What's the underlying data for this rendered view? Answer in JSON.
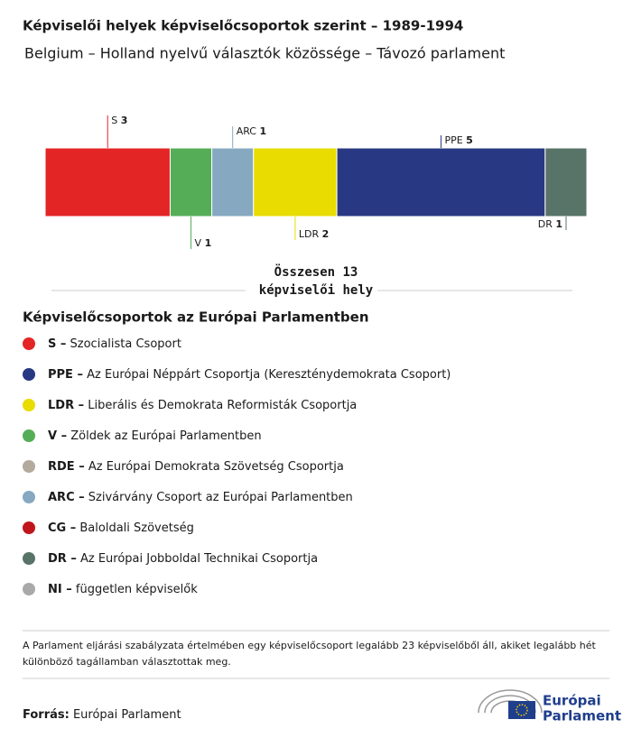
{
  "chart_data": {
    "type": "stacked-bar",
    "title": "Képviselői helyek képviselőcsoportok szerint – 1989-1994",
    "subtitle": "Belgium – Holland nyelvű választók közössége – Távozó parlament",
    "series": [
      {
        "name": "S",
        "color": "#e32526",
        "values": [
          3
        ]
      },
      {
        "name": "V",
        "color": "#55ae57",
        "values": [
          1
        ]
      },
      {
        "name": "ARC",
        "color": "#86a9c1",
        "values": [
          1
        ]
      },
      {
        "name": "LDR",
        "color": "#e8dc00",
        "values": [
          2
        ]
      },
      {
        "name": "PPE",
        "color": "#283883",
        "values": [
          5
        ]
      },
      {
        "name": "DR",
        "color": "#587368",
        "values": [
          1
        ]
      }
    ],
    "total_label": "Összesen 13 képviselői hely",
    "legend_title": "Képviselőcsoportok az Európai Parlamentben",
    "legend": [
      {
        "code": "S –",
        "label": "Szocialista Csoport",
        "color": "#e32526"
      },
      {
        "code": "PPE –",
        "label": "Az Európai Néppárt Csoportja (Kereszténydemokrata Csoport)",
        "color": "#283883"
      },
      {
        "code": "LDR –",
        "label": "Liberális és Demokrata Reformisták Csoportja",
        "color": "#e8dc00"
      },
      {
        "code": "V –",
        "label": "Zöldek az Európai Parlamentben",
        "color": "#55ae57"
      },
      {
        "code": "RDE –",
        "label": "Az Európai Demokrata Szövetség Csoportja",
        "color": "#b3aa9d"
      },
      {
        "code": "ARC –",
        "label": "Szivárvány Csoport az Európai Parlamentben",
        "color": "#86a9c1"
      },
      {
        "code": "CG –",
        "label": "Baloldali Szövetség",
        "color": "#c1151c"
      },
      {
        "code": "DR –",
        "label": "Az Európai Jobboldal Technikai Csoportja",
        "color": "#587368"
      },
      {
        "code": "NI –",
        "label": "független képviselők",
        "color": "#a9a9a9"
      }
    ],
    "note": "A Parlament eljárási szabályzata értelmében egy képviselőcsoport legalább 23 képviselőből áll, akiket legalább hét különböző tagállamban választottak meg.",
    "source_label": "Forrás:",
    "source": "Európai Parlament",
    "logo": [
      "Európai",
      "Parlament"
    ]
  }
}
